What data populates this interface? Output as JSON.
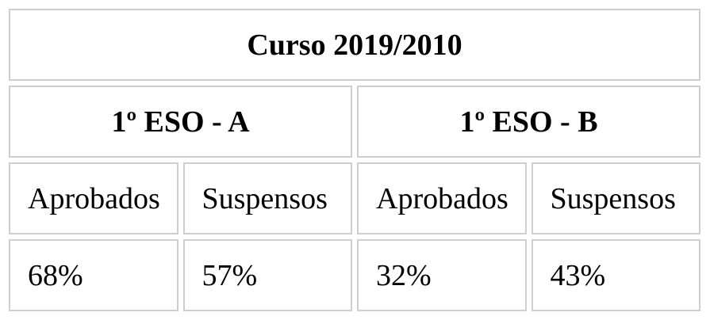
{
  "title": "Curso 2019/2010",
  "groups": [
    {
      "name": "1º ESO - A",
      "columns": [
        "Aprobados",
        "Suspensos"
      ],
      "values": [
        "68%",
        "57%"
      ]
    },
    {
      "name": "1º ESO - B",
      "columns": [
        "Aprobados",
        "Suspensos"
      ],
      "values": [
        "32%",
        "43%"
      ]
    }
  ]
}
